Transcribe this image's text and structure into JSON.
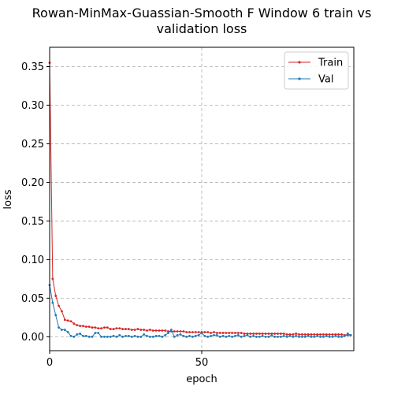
{
  "chart_data": {
    "type": "line",
    "title_lines": [
      "Rowan-MinMax-Guassian-Smooth F Window 6 train vs",
      "validation loss"
    ],
    "xlabel": "epoch",
    "ylabel": "loss",
    "xlim": [
      0,
      100
    ],
    "ylim": [
      -0.018,
      0.375
    ],
    "xticks": [
      0,
      50
    ],
    "xtick_labels": [
      "0",
      "50"
    ],
    "yticks": [
      0.0,
      0.05,
      0.1,
      0.15,
      0.2,
      0.25,
      0.3,
      0.35
    ],
    "ytick_labels": [
      "0.00",
      "0.05",
      "0.10",
      "0.15",
      "0.20",
      "0.25",
      "0.30",
      "0.35"
    ],
    "grid": true,
    "legend_position": "top-right",
    "series": [
      {
        "name": "Train",
        "color": "#d62728",
        "values": [
          0.355,
          0.075,
          0.053,
          0.04,
          0.033,
          0.022,
          0.021,
          0.02,
          0.017,
          0.015,
          0.014,
          0.014,
          0.013,
          0.013,
          0.012,
          0.012,
          0.011,
          0.011,
          0.012,
          0.012,
          0.01,
          0.01,
          0.011,
          0.011,
          0.01,
          0.01,
          0.01,
          0.009,
          0.009,
          0.01,
          0.009,
          0.009,
          0.008,
          0.009,
          0.008,
          0.008,
          0.008,
          0.008,
          0.008,
          0.007,
          0.007,
          0.007,
          0.007,
          0.007,
          0.007,
          0.006,
          0.006,
          0.006,
          0.006,
          0.006,
          0.006,
          0.006,
          0.006,
          0.005,
          0.006,
          0.005,
          0.005,
          0.005,
          0.005,
          0.005,
          0.005,
          0.005,
          0.005,
          0.005,
          0.004,
          0.004,
          0.004,
          0.004,
          0.004,
          0.004,
          0.004,
          0.004,
          0.004,
          0.004,
          0.004,
          0.004,
          0.004,
          0.004,
          0.003,
          0.003,
          0.003,
          0.004,
          0.003,
          0.003,
          0.003,
          0.003,
          0.003,
          0.003,
          0.003,
          0.003,
          0.003,
          0.003,
          0.003,
          0.003,
          0.003,
          0.003,
          0.003,
          0.002,
          0.002,
          0.002
        ]
      },
      {
        "name": "Val",
        "color": "#1f77b4",
        "values": [
          0.067,
          0.044,
          0.028,
          0.012,
          0.009,
          0.009,
          0.006,
          0.001,
          0.0,
          0.003,
          0.004,
          0.001,
          0.001,
          0.0,
          0.0,
          0.005,
          0.005,
          0.0,
          0.0,
          0.0,
          0.0,
          0.001,
          0.0,
          0.002,
          0.0,
          0.001,
          0.001,
          0.0,
          0.001,
          0.0,
          0.0,
          0.003,
          0.001,
          0.0,
          0.0,
          0.001,
          0.001,
          0.0,
          0.002,
          0.005,
          0.009,
          0.0,
          0.002,
          0.003,
          0.001,
          0.0,
          0.001,
          0.0,
          0.001,
          0.002,
          0.005,
          0.001,
          0.0,
          0.001,
          0.002,
          0.002,
          0.0,
          0.001,
          0.0,
          0.001,
          0.0,
          0.001,
          0.002,
          0.0,
          0.001,
          0.002,
          0.0,
          0.001,
          0.0,
          0.0,
          0.001,
          0.0,
          0.0,
          0.002,
          0.0,
          0.0,
          0.0,
          0.001,
          0.0,
          0.001,
          0.0,
          0.001,
          0.0,
          0.0,
          0.0,
          0.001,
          0.0,
          0.0,
          0.001,
          0.0,
          0.0,
          0.001,
          0.0,
          0.0,
          0.001,
          0.0,
          0.0,
          0.001,
          0.004,
          0.002
        ]
      }
    ]
  }
}
